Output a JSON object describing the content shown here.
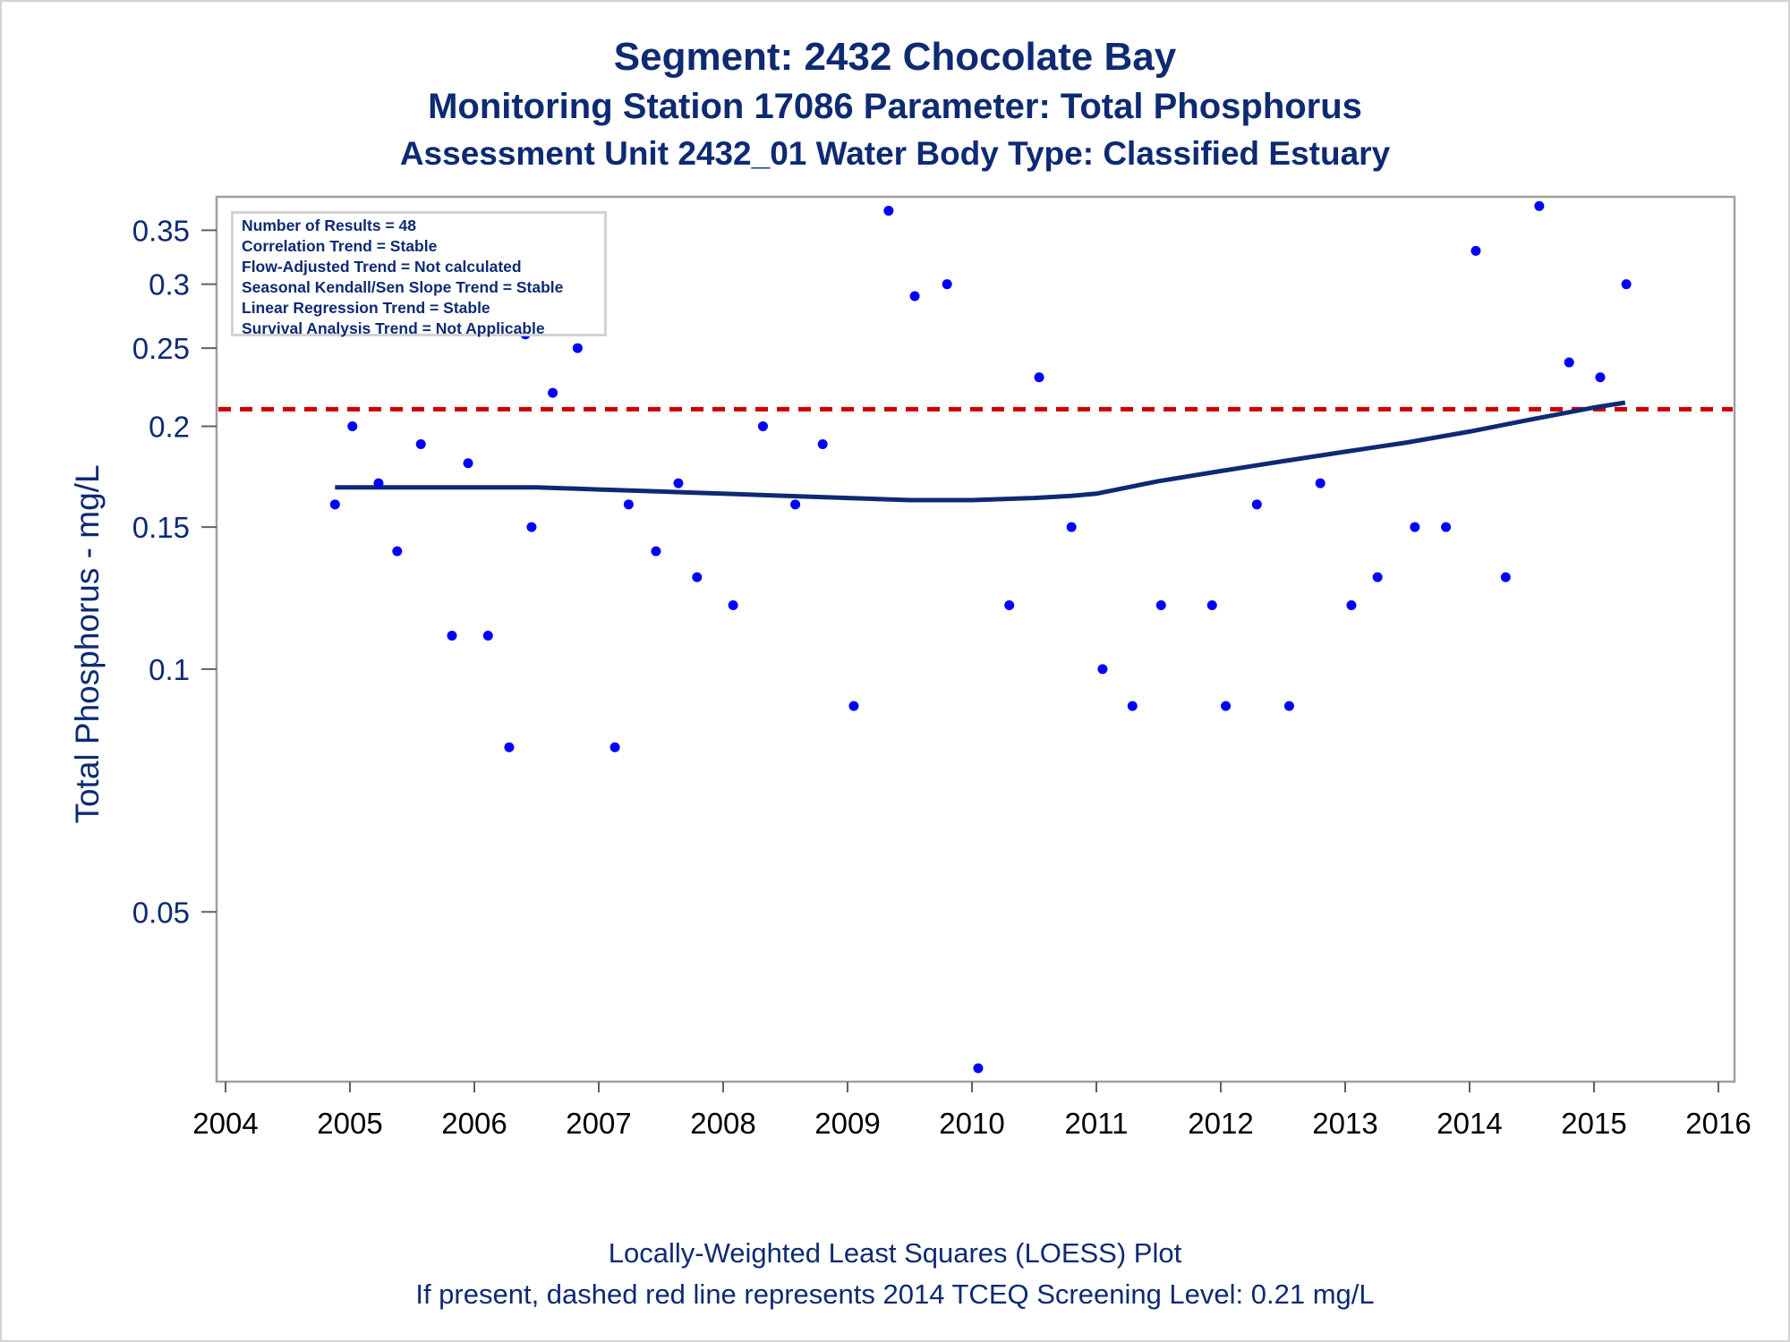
{
  "titles": {
    "line1": "Segment: 2432  Chocolate Bay",
    "line2": "Monitoring Station 17086 Parameter: Total Phosphorus",
    "line3": "Assessment Unit 2432_01   Water Body Type: Classified Estuary"
  },
  "stats_box": [
    "Number of Results = 48",
    "Correlation Trend = Stable",
    "Flow-Adjusted Trend = Not calculated",
    "Seasonal Kendall/Sen Slope Trend = Stable",
    "Linear Regression Trend = Stable",
    "Survival Analysis Trend = Not Applicable"
  ],
  "footer": {
    "line1": "Locally-Weighted Least Squares (LOESS) Plot",
    "line2": "If present, dashed red line represents 2014 TCEQ Screening Level: 0.21 mg/L"
  },
  "colors": {
    "text": "#0d2a73",
    "points": "#0000ff",
    "loess": "#0d2a73",
    "screening": "#cc0000",
    "frame": "#a0a0a0"
  },
  "chart_data": {
    "type": "scatter",
    "title": "Segment: 2432  Chocolate Bay",
    "xlabel": "",
    "ylabel": "Total Phosphorus - mg/L",
    "y_scale": "log",
    "xlim": [
      2004,
      2016
    ],
    "ylim": [
      0.0308,
      0.385
    ],
    "x_ticks": [
      2004,
      2005,
      2006,
      2007,
      2008,
      2009,
      2010,
      2011,
      2012,
      2013,
      2014,
      2015,
      2016
    ],
    "y_ticks": [
      0.05,
      0.1,
      0.15,
      0.2,
      0.25,
      0.3,
      0.35
    ],
    "y_tick_labels": [
      "0.05",
      "0.1",
      "0.15",
      "0.2",
      "0.25",
      "0.3",
      "0.35"
    ],
    "grid": false,
    "screening_level": 0.21,
    "series": [
      {
        "kind": "points",
        "values": [
          [
            2004.88,
            0.16
          ],
          [
            2005.02,
            0.2
          ],
          [
            2005.23,
            0.17
          ],
          [
            2005.38,
            0.14
          ],
          [
            2005.57,
            0.19
          ],
          [
            2005.82,
            0.11
          ],
          [
            2005.95,
            0.18
          ],
          [
            2006.11,
            0.11
          ],
          [
            2006.28,
            0.08
          ],
          [
            2006.41,
            0.26
          ],
          [
            2006.46,
            0.15
          ],
          [
            2006.63,
            0.22
          ],
          [
            2006.83,
            0.25
          ],
          [
            2007.13,
            0.08
          ],
          [
            2007.24,
            0.16
          ],
          [
            2007.46,
            0.14
          ],
          [
            2007.64,
            0.17
          ],
          [
            2007.79,
            0.13
          ],
          [
            2008.08,
            0.12
          ],
          [
            2008.32,
            0.2
          ],
          [
            2008.58,
            0.16
          ],
          [
            2008.8,
            0.19
          ],
          [
            2009.05,
            0.09
          ],
          [
            2009.33,
            0.37
          ],
          [
            2009.54,
            0.29
          ],
          [
            2009.8,
            0.3
          ],
          [
            2010.05,
            0.032
          ],
          [
            2010.3,
            0.12
          ],
          [
            2010.54,
            0.23
          ],
          [
            2010.8,
            0.15
          ],
          [
            2011.05,
            0.1
          ],
          [
            2011.29,
            0.09
          ],
          [
            2011.52,
            0.12
          ],
          [
            2011.93,
            0.12
          ],
          [
            2012.04,
            0.09
          ],
          [
            2012.29,
            0.16
          ],
          [
            2012.55,
            0.09
          ],
          [
            2012.8,
            0.17
          ],
          [
            2013.05,
            0.12
          ],
          [
            2013.26,
            0.13
          ],
          [
            2013.56,
            0.15
          ],
          [
            2013.81,
            0.15
          ],
          [
            2014.05,
            0.33
          ],
          [
            2014.29,
            0.13
          ],
          [
            2014.56,
            0.375
          ],
          [
            2014.8,
            0.24
          ],
          [
            2015.05,
            0.23
          ],
          [
            2015.26,
            0.3
          ]
        ]
      },
      {
        "kind": "loess",
        "values": [
          [
            2004.88,
            0.168
          ],
          [
            2005.5,
            0.168
          ],
          [
            2006.0,
            0.168
          ],
          [
            2006.5,
            0.168
          ],
          [
            2007.0,
            0.167
          ],
          [
            2007.5,
            0.166
          ],
          [
            2008.0,
            0.165
          ],
          [
            2008.5,
            0.164
          ],
          [
            2009.0,
            0.163
          ],
          [
            2009.5,
            0.162
          ],
          [
            2010.0,
            0.162
          ],
          [
            2010.5,
            0.163
          ],
          [
            2010.8,
            0.164
          ],
          [
            2011.0,
            0.165
          ],
          [
            2011.5,
            0.171
          ],
          [
            2012.0,
            0.176
          ],
          [
            2012.5,
            0.181
          ],
          [
            2013.0,
            0.186
          ],
          [
            2013.5,
            0.191
          ],
          [
            2014.0,
            0.197
          ],
          [
            2014.5,
            0.204
          ],
          [
            2015.0,
            0.211
          ],
          [
            2015.25,
            0.214
          ]
        ]
      }
    ]
  }
}
